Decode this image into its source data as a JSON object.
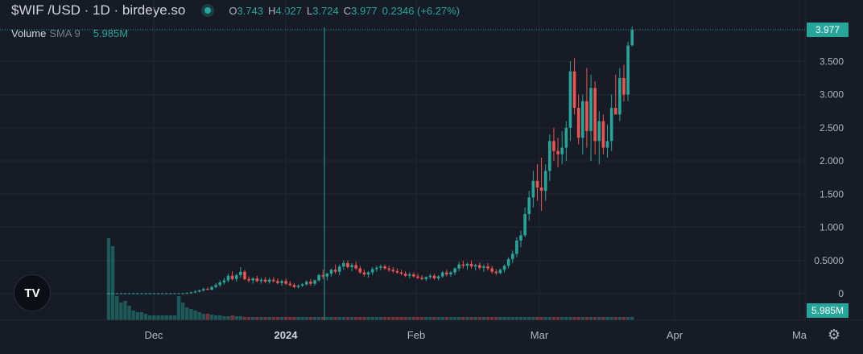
{
  "header": {
    "title": "$WIF /USD · 1D · birdeye.so",
    "ohlc": {
      "o_label": "O",
      "o": "3.743",
      "h_label": "H",
      "h": "4.027",
      "l_label": "L",
      "l": "3.724",
      "c_label": "C",
      "c": "3.977",
      "change": "0.2346 (+6.27%)"
    },
    "volume_label": "Volume",
    "sma_label": "SMA 9",
    "volume_value": "5.985M"
  },
  "price_tag": "3.977",
  "volume_tag": "5.985M",
  "colors": {
    "up": "#26a69a",
    "down": "#ef5350",
    "bg": "#171b26",
    "grid": "#242733",
    "text": "#b2b5be"
  },
  "icons": {
    "logo": "tradingview-logo-icon",
    "settings": "gear-icon"
  },
  "chart_data": {
    "type": "candlestick",
    "y_ticks": [
      "3.500",
      "3.000",
      "2.500",
      "2.000",
      "1.500",
      "1.000",
      "0.5000",
      "0"
    ],
    "x_ticks": [
      "Dec",
      "2024",
      "Feb",
      "Mar",
      "Apr",
      "Ma"
    ],
    "ylim": [
      0,
      4.1
    ],
    "series": [
      {
        "name": "$WIF /USD",
        "ohlc": [
          [
            0.0,
            0.01,
            0.0,
            0.005
          ],
          [
            0.005,
            0.01,
            0.0,
            0.005
          ],
          [
            0.005,
            0.01,
            0.0,
            0.005
          ],
          [
            0.005,
            0.01,
            0.0,
            0.005
          ],
          [
            0.005,
            0.01,
            0.0,
            0.005
          ],
          [
            0.005,
            0.01,
            0.0,
            0.005
          ],
          [
            0.005,
            0.01,
            0.0,
            0.005
          ],
          [
            0.005,
            0.01,
            0.0,
            0.005
          ],
          [
            0.005,
            0.01,
            0.0,
            0.005
          ],
          [
            0.005,
            0.01,
            0.0,
            0.005
          ],
          [
            0.005,
            0.01,
            0.0,
            0.005
          ],
          [
            0.005,
            0.01,
            0.0,
            0.005
          ],
          [
            0.005,
            0.01,
            0.0,
            0.005
          ],
          [
            0.005,
            0.01,
            0.0,
            0.005
          ],
          [
            0.005,
            0.01,
            0.0,
            0.005
          ],
          [
            0.005,
            0.01,
            0.0,
            0.005
          ],
          [
            0.005,
            0.01,
            0.0,
            0.005
          ],
          [
            0.005,
            0.01,
            0.0,
            0.005
          ],
          [
            0.005,
            0.01,
            0.0,
            0.005
          ],
          [
            0.005,
            0.02,
            0.0,
            0.01
          ],
          [
            0.01,
            0.03,
            0.0,
            0.02
          ],
          [
            0.02,
            0.05,
            0.01,
            0.03
          ],
          [
            0.03,
            0.06,
            0.02,
            0.05
          ],
          [
            0.05,
            0.09,
            0.03,
            0.07
          ],
          [
            0.07,
            0.1,
            0.05,
            0.06
          ],
          [
            0.06,
            0.12,
            0.05,
            0.1
          ],
          [
            0.1,
            0.16,
            0.08,
            0.13
          ],
          [
            0.13,
            0.2,
            0.1,
            0.17
          ],
          [
            0.17,
            0.24,
            0.14,
            0.2
          ],
          [
            0.2,
            0.3,
            0.17,
            0.27
          ],
          [
            0.27,
            0.34,
            0.2,
            0.22
          ],
          [
            0.22,
            0.3,
            0.18,
            0.28
          ],
          [
            0.28,
            0.4,
            0.24,
            0.33
          ],
          [
            0.33,
            0.36,
            0.2,
            0.22
          ],
          [
            0.22,
            0.26,
            0.17,
            0.2
          ],
          [
            0.2,
            0.25,
            0.15,
            0.23
          ],
          [
            0.23,
            0.27,
            0.17,
            0.19
          ],
          [
            0.19,
            0.24,
            0.15,
            0.21
          ],
          [
            0.21,
            0.25,
            0.16,
            0.18
          ],
          [
            0.18,
            0.24,
            0.15,
            0.21
          ],
          [
            0.21,
            0.25,
            0.17,
            0.19
          ],
          [
            0.19,
            0.23,
            0.14,
            0.16
          ],
          [
            0.16,
            0.21,
            0.12,
            0.19
          ],
          [
            0.19,
            0.23,
            0.13,
            0.15
          ],
          [
            0.15,
            0.19,
            0.11,
            0.13
          ],
          [
            0.13,
            0.16,
            0.08,
            0.1
          ],
          [
            0.1,
            0.14,
            0.08,
            0.12
          ],
          [
            0.12,
            0.16,
            0.1,
            0.14
          ],
          [
            0.14,
            0.2,
            0.12,
            0.18
          ],
          [
            0.18,
            0.22,
            0.12,
            0.15
          ],
          [
            0.15,
            0.21,
            0.12,
            0.2
          ],
          [
            0.2,
            0.3,
            0.18,
            0.28
          ],
          [
            0.28,
            0.36,
            0.22,
            0.26
          ],
          [
            0.26,
            0.32,
            0.2,
            0.3
          ],
          [
            0.3,
            0.38,
            0.26,
            0.36
          ],
          [
            0.36,
            0.44,
            0.3,
            0.33
          ],
          [
            0.33,
            0.44,
            0.28,
            0.41
          ],
          [
            0.41,
            0.5,
            0.36,
            0.46
          ],
          [
            0.46,
            0.5,
            0.38,
            0.4
          ],
          [
            0.4,
            0.46,
            0.34,
            0.43
          ],
          [
            0.43,
            0.48,
            0.36,
            0.38
          ],
          [
            0.38,
            0.42,
            0.3,
            0.32
          ],
          [
            0.32,
            0.36,
            0.26,
            0.29
          ],
          [
            0.29,
            0.34,
            0.24,
            0.32
          ],
          [
            0.32,
            0.4,
            0.28,
            0.37
          ],
          [
            0.37,
            0.42,
            0.33,
            0.39
          ],
          [
            0.39,
            0.44,
            0.35,
            0.41
          ],
          [
            0.41,
            0.44,
            0.36,
            0.38
          ],
          [
            0.38,
            0.42,
            0.33,
            0.36
          ],
          [
            0.36,
            0.4,
            0.31,
            0.34
          ],
          [
            0.34,
            0.38,
            0.3,
            0.32
          ],
          [
            0.32,
            0.36,
            0.28,
            0.3
          ],
          [
            0.3,
            0.34,
            0.25,
            0.27
          ],
          [
            0.27,
            0.32,
            0.23,
            0.29
          ],
          [
            0.29,
            0.32,
            0.24,
            0.26
          ],
          [
            0.26,
            0.3,
            0.22,
            0.24
          ],
          [
            0.24,
            0.28,
            0.2,
            0.22
          ],
          [
            0.22,
            0.26,
            0.19,
            0.25
          ],
          [
            0.25,
            0.3,
            0.22,
            0.27
          ],
          [
            0.27,
            0.3,
            0.21,
            0.23
          ],
          [
            0.23,
            0.28,
            0.2,
            0.26
          ],
          [
            0.26,
            0.34,
            0.24,
            0.32
          ],
          [
            0.32,
            0.36,
            0.26,
            0.29
          ],
          [
            0.29,
            0.34,
            0.25,
            0.32
          ],
          [
            0.32,
            0.4,
            0.28,
            0.38
          ],
          [
            0.38,
            0.48,
            0.34,
            0.44
          ],
          [
            0.44,
            0.5,
            0.38,
            0.42
          ],
          [
            0.42,
            0.47,
            0.36,
            0.45
          ],
          [
            0.45,
            0.5,
            0.38,
            0.41
          ],
          [
            0.41,
            0.45,
            0.35,
            0.43
          ],
          [
            0.43,
            0.47,
            0.36,
            0.39
          ],
          [
            0.39,
            0.44,
            0.33,
            0.41
          ],
          [
            0.41,
            0.46,
            0.35,
            0.38
          ],
          [
            0.38,
            0.42,
            0.3,
            0.33
          ],
          [
            0.33,
            0.37,
            0.28,
            0.31
          ],
          [
            0.31,
            0.38,
            0.29,
            0.36
          ],
          [
            0.36,
            0.44,
            0.32,
            0.42
          ],
          [
            0.42,
            0.55,
            0.38,
            0.52
          ],
          [
            0.52,
            0.65,
            0.46,
            0.6
          ],
          [
            0.6,
            0.85,
            0.55,
            0.8
          ],
          [
            0.8,
            0.95,
            0.7,
            0.88
          ],
          [
            0.88,
            1.3,
            0.85,
            1.2
          ],
          [
            1.2,
            1.55,
            1.1,
            1.45
          ],
          [
            1.45,
            1.85,
            1.3,
            1.7
          ],
          [
            1.7,
            1.95,
            1.4,
            1.6
          ],
          [
            1.6,
            2.05,
            1.25,
            1.55
          ],
          [
            1.55,
            1.95,
            1.4,
            1.85
          ],
          [
            1.85,
            2.4,
            1.7,
            2.3
          ],
          [
            2.3,
            2.5,
            2.0,
            2.15
          ],
          [
            2.15,
            2.35,
            1.9,
            2.1
          ],
          [
            2.1,
            2.45,
            1.95,
            2.2
          ],
          [
            2.2,
            2.6,
            2.0,
            2.5
          ],
          [
            2.5,
            3.5,
            2.3,
            3.35
          ],
          [
            3.35,
            3.55,
            2.7,
            2.8
          ],
          [
            2.8,
            3.0,
            2.25,
            2.35
          ],
          [
            2.35,
            3.0,
            2.1,
            2.9
          ],
          [
            2.9,
            3.4,
            2.2,
            2.45
          ],
          [
            2.45,
            3.3,
            2.0,
            3.1
          ],
          [
            3.1,
            3.2,
            2.1,
            2.3
          ],
          [
            2.3,
            2.75,
            1.95,
            2.6
          ],
          [
            2.6,
            2.7,
            2.1,
            2.2
          ],
          [
            2.2,
            2.55,
            2.05,
            2.3
          ],
          [
            2.3,
            3.0,
            2.15,
            2.8
          ],
          [
            2.8,
            3.3,
            2.7,
            2.7
          ],
          [
            2.7,
            3.4,
            2.6,
            3.25
          ],
          [
            3.25,
            3.45,
            2.9,
            3.0
          ],
          [
            3.0,
            3.8,
            2.9,
            3.74
          ],
          [
            3.743,
            4.027,
            3.724,
            3.977
          ]
        ]
      }
    ],
    "volume_scale_note": "bars"
  }
}
